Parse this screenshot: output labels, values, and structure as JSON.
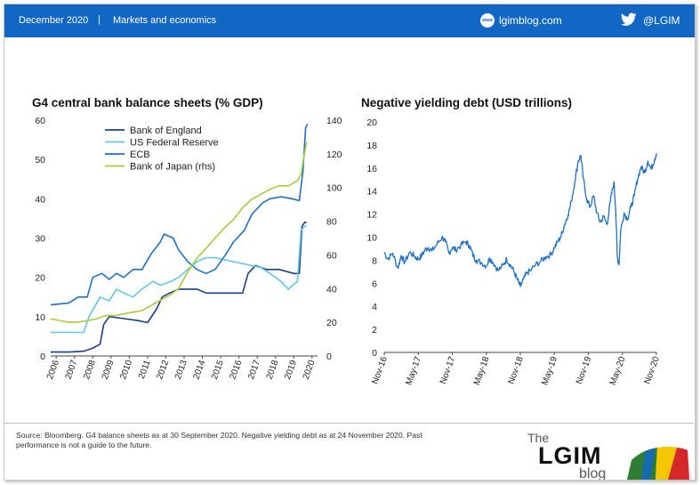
{
  "header": {
    "date": "December 2020",
    "separator": "|",
    "section": "Markets and economics",
    "site": "lgimblog.com",
    "site_icon_text": "www",
    "twitter_handle": "@LGIM",
    "background": "#1266c4"
  },
  "chart_data": [
    {
      "type": "line",
      "title": "G4 central bank balance sheets (% GDP)",
      "ylim": [
        0,
        60
      ],
      "y2lim": [
        0,
        140
      ],
      "yticks": [
        "0",
        "10",
        "20",
        "30",
        "40",
        "50",
        "60"
      ],
      "y2ticks": [
        "0",
        "20",
        "40",
        "60",
        "80",
        "100",
        "120",
        "140"
      ],
      "x_tick_labels": [
        "2006",
        "2007",
        "2008",
        "2009",
        "2010",
        "2011",
        "2012",
        "2013",
        "2014",
        "2015",
        "2016",
        "2017",
        "2018",
        "2019",
        "2020"
      ],
      "legend_position": "top-left",
      "series": [
        {
          "name": "Bank of England",
          "axis": "left",
          "color": "#1a3f8a",
          "points": [
            [
              2006,
              1
            ],
            [
              2007,
              1
            ],
            [
              2007.8,
              1.2
            ],
            [
              2008.3,
              2
            ],
            [
              2008.7,
              3
            ],
            [
              2008.9,
              8
            ],
            [
              2009.2,
              10
            ],
            [
              2010,
              9.5
            ],
            [
              2010.8,
              9
            ],
            [
              2011.3,
              8.5
            ],
            [
              2011.8,
              12
            ],
            [
              2012.1,
              15
            ],
            [
              2012.5,
              16
            ],
            [
              2013,
              17
            ],
            [
              2014,
              17
            ],
            [
              2014.5,
              16
            ],
            [
              2015,
              16
            ],
            [
              2016,
              16
            ],
            [
              2016.5,
              16
            ],
            [
              2016.8,
              21
            ],
            [
              2017.2,
              23
            ],
            [
              2017.8,
              22
            ],
            [
              2018.5,
              22
            ],
            [
              2019.3,
              21
            ],
            [
              2019.6,
              21
            ],
            [
              2019.75,
              33
            ],
            [
              2019.9,
              34
            ],
            [
              2020.0,
              34
            ]
          ]
        },
        {
          "name": "US Federal Reserve",
          "axis": "left",
          "color": "#62c6ea",
          "points": [
            [
              2006,
              6
            ],
            [
              2007,
              6
            ],
            [
              2007.8,
              6
            ],
            [
              2008.1,
              10
            ],
            [
              2008.7,
              15
            ],
            [
              2009.2,
              14
            ],
            [
              2009.6,
              17
            ],
            [
              2010,
              16
            ],
            [
              2010.5,
              15
            ],
            [
              2011,
              17
            ],
            [
              2011.6,
              19
            ],
            [
              2012,
              18
            ],
            [
              2012.6,
              19
            ],
            [
              2013,
              20
            ],
            [
              2013.5,
              22
            ],
            [
              2014,
              24
            ],
            [
              2014.5,
              25
            ],
            [
              2015,
              25
            ],
            [
              2016,
              24
            ],
            [
              2017,
              23
            ],
            [
              2017.5,
              22.5
            ],
            [
              2018,
              21
            ],
            [
              2018.6,
              19
            ],
            [
              2019,
              17
            ],
            [
              2019.5,
              19
            ],
            [
              2019.7,
              32
            ],
            [
              2019.9,
              33
            ],
            [
              2020.0,
              33
            ]
          ]
        },
        {
          "name": "ECB",
          "axis": "left",
          "color": "#1f6fc4",
          "points": [
            [
              2006,
              13
            ],
            [
              2007,
              13.5
            ],
            [
              2007.5,
              15
            ],
            [
              2008,
              15
            ],
            [
              2008.3,
              20
            ],
            [
              2008.8,
              21
            ],
            [
              2009.2,
              19.5
            ],
            [
              2009.6,
              21
            ],
            [
              2010,
              20
            ],
            [
              2010.5,
              22
            ],
            [
              2011,
              22
            ],
            [
              2011.5,
              26
            ],
            [
              2012,
              29
            ],
            [
              2012.2,
              31
            ],
            [
              2012.7,
              30
            ],
            [
              2013,
              27
            ],
            [
              2013.5,
              24
            ],
            [
              2014,
              22
            ],
            [
              2014.5,
              21
            ],
            [
              2015,
              22
            ],
            [
              2015.6,
              26
            ],
            [
              2016,
              29
            ],
            [
              2016.6,
              32
            ],
            [
              2017,
              36
            ],
            [
              2017.6,
              39
            ],
            [
              2018,
              40
            ],
            [
              2018.6,
              40.5
            ],
            [
              2019.2,
              40
            ],
            [
              2019.6,
              39.5
            ],
            [
              2019.8,
              47
            ],
            [
              2019.95,
              58
            ],
            [
              2020.05,
              59
            ]
          ]
        },
        {
          "name": "Bank of Japan (rhs)",
          "axis": "right",
          "color": "#a6ce39",
          "points": [
            [
              2006,
              22
            ],
            [
              2007,
              20
            ],
            [
              2007.5,
              20
            ],
            [
              2008,
              21
            ],
            [
              2008.5,
              22
            ],
            [
              2009,
              24
            ],
            [
              2009.5,
              24
            ],
            [
              2010,
              25
            ],
            [
              2010.5,
              26
            ],
            [
              2011,
              27
            ],
            [
              2011.5,
              30
            ],
            [
              2012,
              33
            ],
            [
              2012.5,
              36
            ],
            [
              2013,
              40
            ],
            [
              2013.5,
              50
            ],
            [
              2014,
              58
            ],
            [
              2014.5,
              64
            ],
            [
              2015,
              70
            ],
            [
              2015.5,
              76
            ],
            [
              2016,
              81
            ],
            [
              2016.5,
              88
            ],
            [
              2017,
              93
            ],
            [
              2017.5,
              96
            ],
            [
              2018,
              99
            ],
            [
              2018.5,
              101
            ],
            [
              2019,
              101
            ],
            [
              2019.5,
              104
            ],
            [
              2019.7,
              108
            ],
            [
              2019.85,
              118
            ],
            [
              2020.0,
              127
            ]
          ]
        }
      ]
    },
    {
      "type": "line",
      "title": "Negative yielding debt (USD trillions)",
      "ylim": [
        0,
        20
      ],
      "yticks": [
        "0",
        "2",
        "4",
        "6",
        "8",
        "10",
        "12",
        "14",
        "16",
        "18",
        "20"
      ],
      "x_tick_labels": [
        "Nov-16",
        "May-17",
        "Nov-17",
        "May-18",
        "Nov-18",
        "May-19",
        "Nov-19",
        "May-20",
        "Nov-20"
      ],
      "series": [
        {
          "name": "",
          "color": "#1f6fc4",
          "points": [
            [
              0,
              8.7
            ],
            [
              0.1,
              8.1
            ],
            [
              0.25,
              8.6
            ],
            [
              0.4,
              7.3
            ],
            [
              0.5,
              8.4
            ],
            [
              0.6,
              7.8
            ],
            [
              0.75,
              8.7
            ],
            [
              0.9,
              8.3
            ],
            [
              1.0,
              8.1
            ],
            [
              1.1,
              8.4
            ],
            [
              1.2,
              8.9
            ],
            [
              1.3,
              9.1
            ],
            [
              1.4,
              8.8
            ],
            [
              1.55,
              9.4
            ],
            [
              1.7,
              10.0
            ],
            [
              1.8,
              9.6
            ],
            [
              1.9,
              8.6
            ],
            [
              2.0,
              9.1
            ],
            [
              2.1,
              8.9
            ],
            [
              2.25,
              9.3
            ],
            [
              2.4,
              9.6
            ],
            [
              2.5,
              9.3
            ],
            [
              2.6,
              8.5
            ],
            [
              2.7,
              8.0
            ],
            [
              2.85,
              7.8
            ],
            [
              3.0,
              7.5
            ],
            [
              3.1,
              8.2
            ],
            [
              3.2,
              7.8
            ],
            [
              3.35,
              7.1
            ],
            [
              3.5,
              7.6
            ],
            [
              3.6,
              8.1
            ],
            [
              3.7,
              7.6
            ],
            [
              3.8,
              7.1
            ],
            [
              3.9,
              6.4
            ],
            [
              4.0,
              5.7
            ],
            [
              4.1,
              6.4
            ],
            [
              4.2,
              6.9
            ],
            [
              4.3,
              7.1
            ],
            [
              4.45,
              7.6
            ],
            [
              4.6,
              7.9
            ],
            [
              4.75,
              8.3
            ],
            [
              4.9,
              8.5
            ],
            [
              5.0,
              9.1
            ],
            [
              5.1,
              9.6
            ],
            [
              5.2,
              10.1
            ],
            [
              5.3,
              11.1
            ],
            [
              5.4,
              11.9
            ],
            [
              5.5,
              13.1
            ],
            [
              5.6,
              14.8
            ],
            [
              5.7,
              16.6
            ],
            [
              5.78,
              17.1
            ],
            [
              5.85,
              15.1
            ],
            [
              5.95,
              13.3
            ],
            [
              6.05,
              12.6
            ],
            [
              6.15,
              13.6
            ],
            [
              6.25,
              12.1
            ],
            [
              6.35,
              11.3
            ],
            [
              6.45,
              11.8
            ],
            [
              6.55,
              11.1
            ],
            [
              6.65,
              13.2
            ],
            [
              6.75,
              14.8
            ],
            [
              6.8,
              12.6
            ],
            [
              6.85,
              8.3
            ],
            [
              6.9,
              7.6
            ],
            [
              6.95,
              10.6
            ],
            [
              7.05,
              12.1
            ],
            [
              7.15,
              11.6
            ],
            [
              7.25,
              12.6
            ],
            [
              7.35,
              13.6
            ],
            [
              7.45,
              15.1
            ],
            [
              7.55,
              16.1
            ],
            [
              7.65,
              15.6
            ],
            [
              7.75,
              16.6
            ],
            [
              7.85,
              15.9
            ],
            [
              7.95,
              16.8
            ],
            [
              8.0,
              17.3
            ]
          ]
        }
      ]
    }
  ],
  "footer": {
    "source": "Source: Bloomberg. G4 balance sheets as at 30 September 2020. Negative yielding debt as at 24 November 2020. Past performance is not a guide to the future.",
    "logo_the": "The",
    "logo_main": "LGIM",
    "logo_sub": "blog"
  }
}
